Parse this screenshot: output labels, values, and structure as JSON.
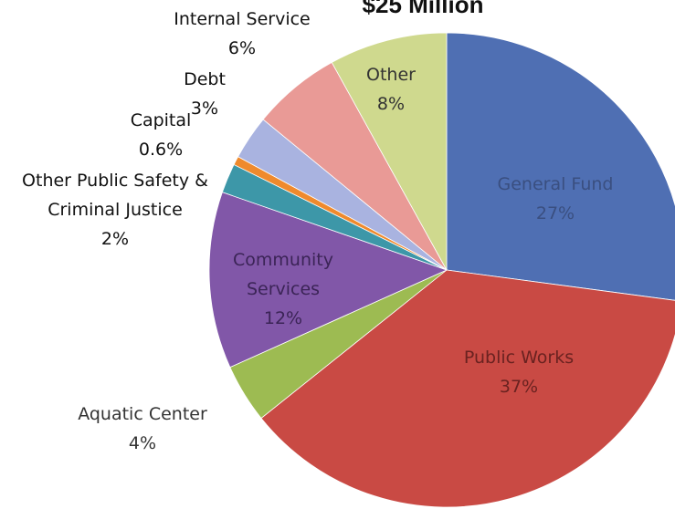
{
  "chart_data": {
    "type": "pie",
    "title": "$25 Million",
    "slices": [
      {
        "name": "General Fund",
        "value": 27,
        "label": "27%",
        "color": "#4f6fb3",
        "label_color": "#3a4f80"
      },
      {
        "name": "Public Works",
        "value": 37,
        "label": "37%",
        "color": "#c94a44",
        "label_color": "#6a2220"
      },
      {
        "name": "Aquatic Center",
        "value": 4,
        "label": "4%",
        "color": "#9dbb52",
        "label_color": "#333333"
      },
      {
        "name": "Community Services",
        "value": 12,
        "label": "12%",
        "color": "#8157a8",
        "label_color": "#3b2456"
      },
      {
        "name": "Other Public Safety & Criminal Justice",
        "value": 2,
        "label": "2%",
        "color": "#3d97a8",
        "label_color": "#111111"
      },
      {
        "name": "Capital",
        "value": 0.6,
        "label": "0.6%",
        "color": "#ef8a2d",
        "label_color": "#111111"
      },
      {
        "name": "Debt",
        "value": 3,
        "label": "3%",
        "color": "#a9b3e0",
        "label_color": "#111111"
      },
      {
        "name": "Internal Service",
        "value": 6,
        "label": "6%",
        "color": "#e99a96",
        "label_color": "#111111"
      },
      {
        "name": "Other",
        "value": 8,
        "label": "8%",
        "color": "#cfd98e",
        "label_color": "#333333"
      }
    ]
  }
}
